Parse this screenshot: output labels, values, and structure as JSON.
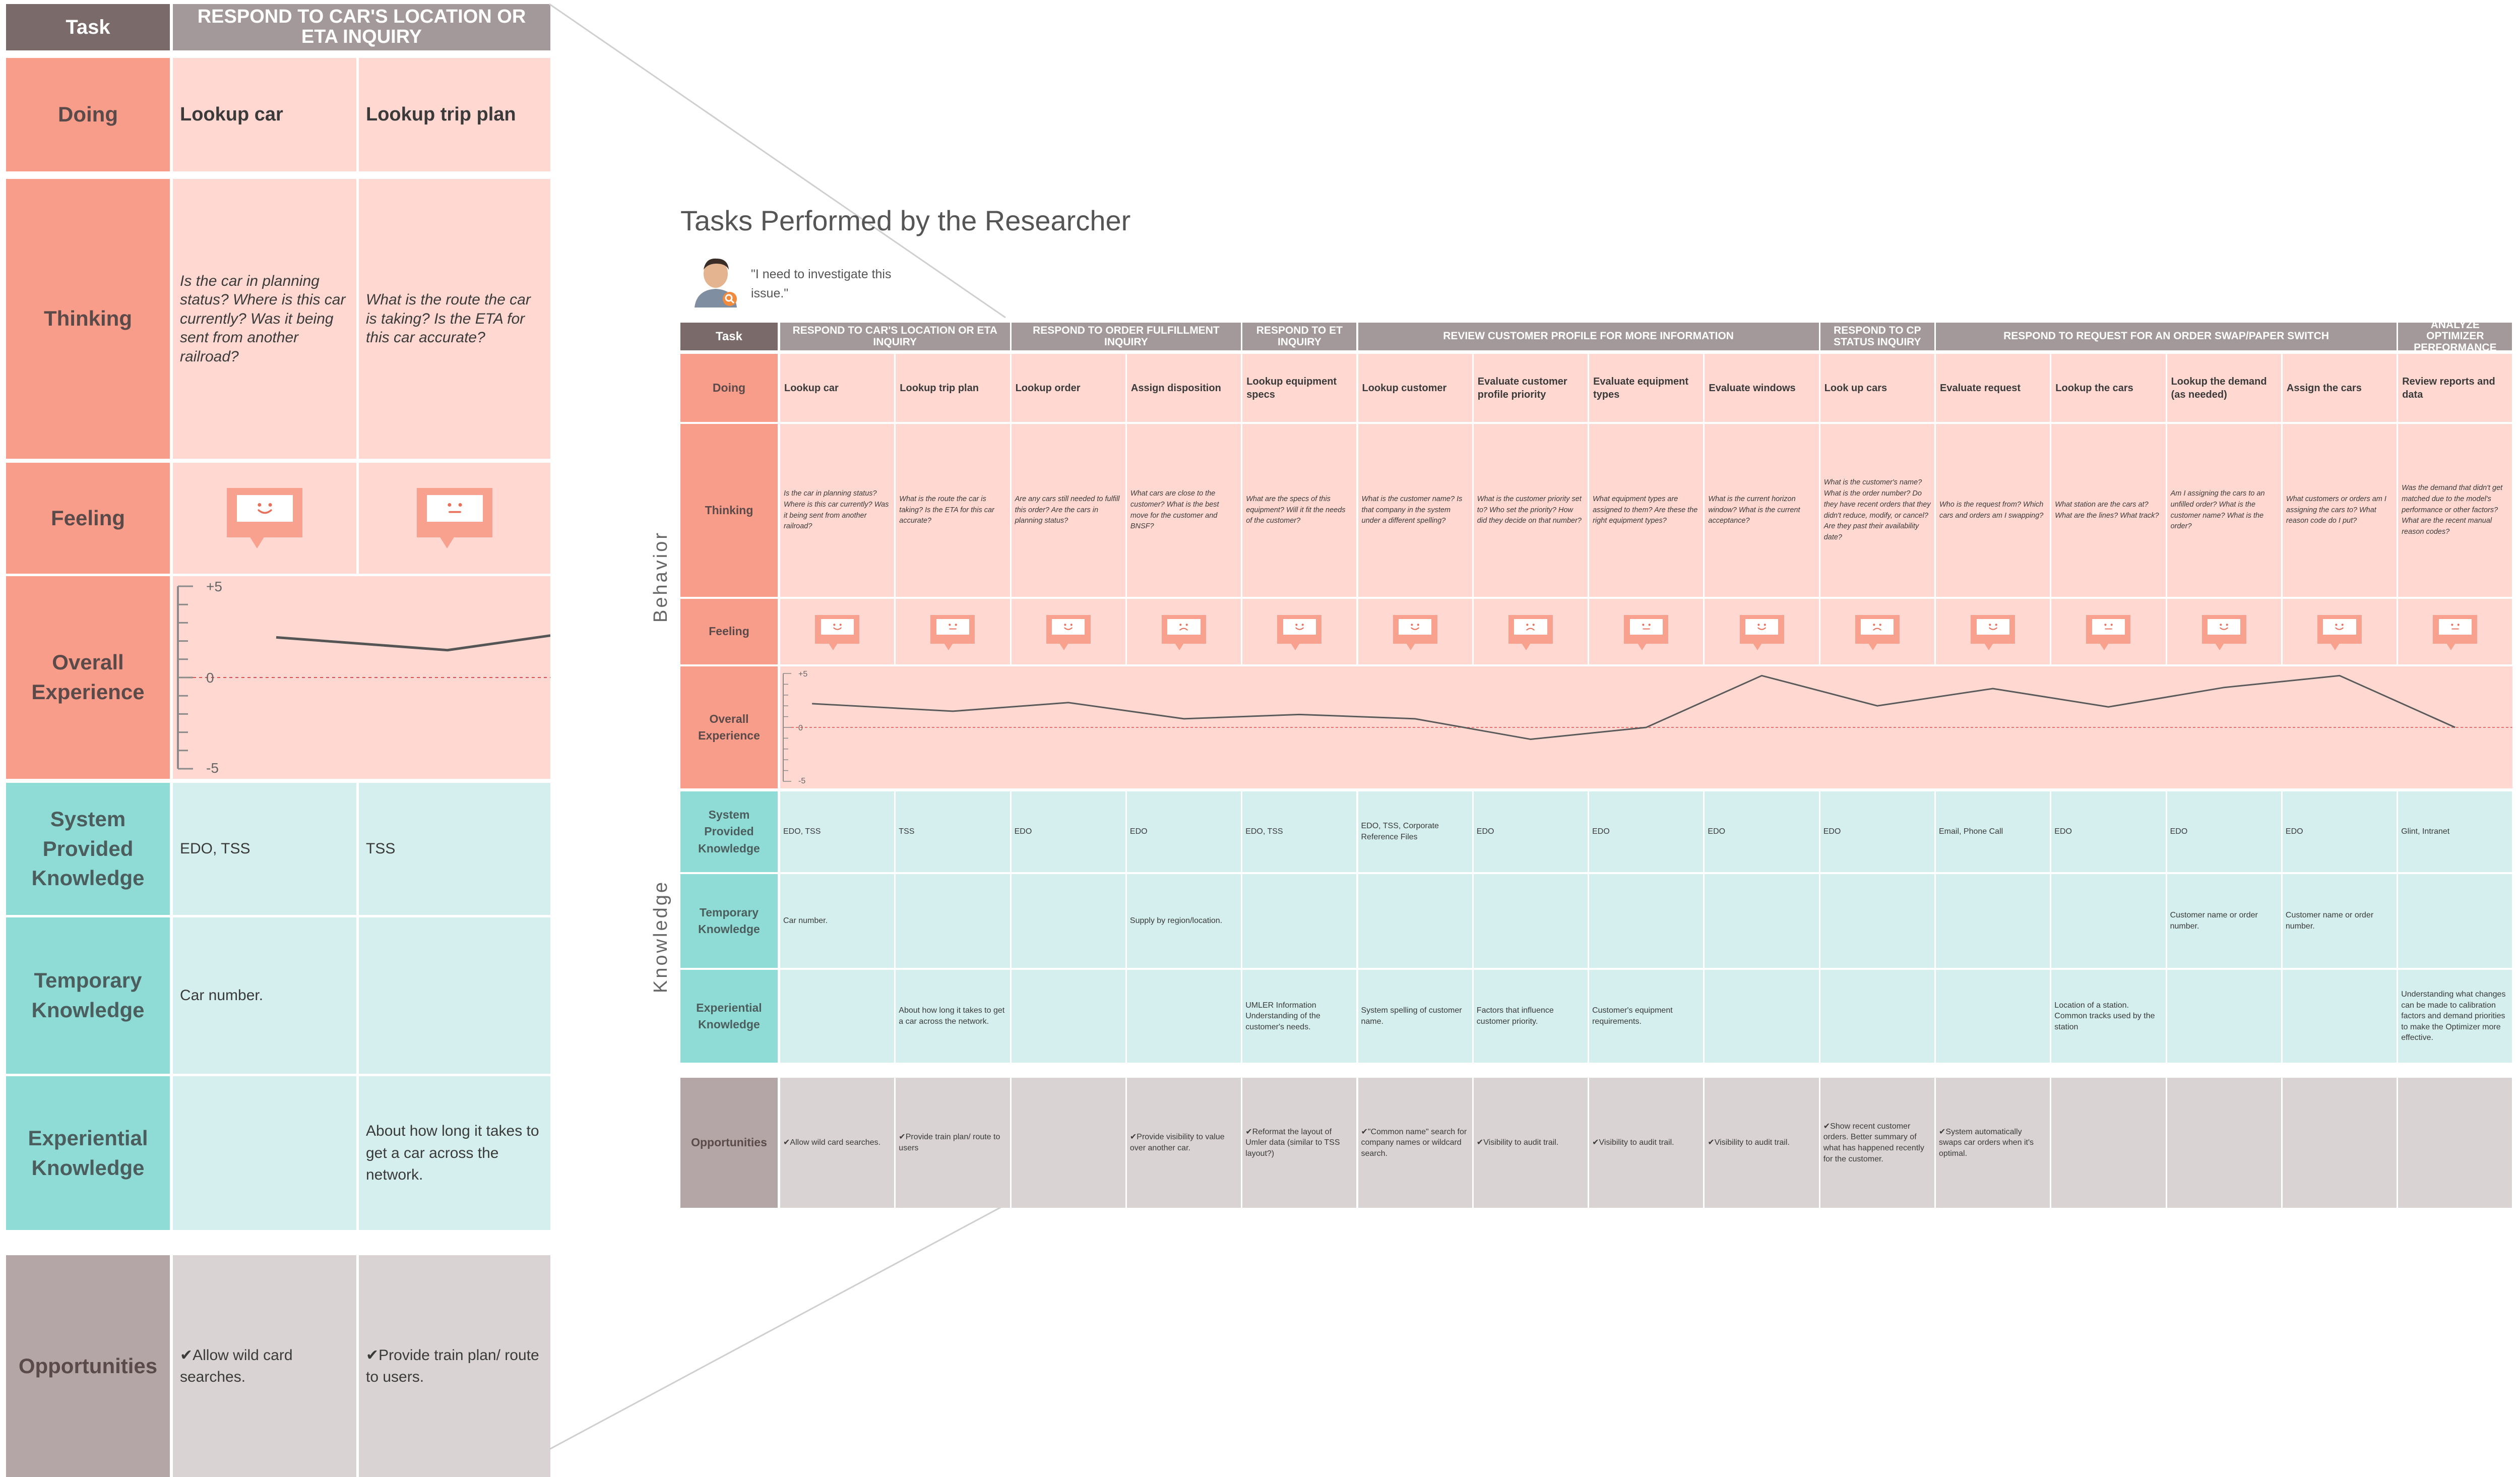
{
  "left_panel": {
    "task_label": "Task",
    "task_group": "RESPOND TO CAR'S LOCATION OR ETA INQUIRY",
    "rows": {
      "doing": "Doing",
      "thinking": "Thinking",
      "feeling": "Feeling",
      "overall": "Overall Experience",
      "system": "System Provided Knowledge",
      "temporary": "Temporary Knowledge",
      "experiential": "Experiential Knowledge",
      "opportunities": "Opportunities"
    },
    "axis": {
      "top": "+5",
      "zero": "0",
      "bottom": "-5"
    },
    "columns": [
      {
        "doing": "Lookup car",
        "thinking": "Is the car in planning status? Where is this car currently? Was it being sent from another railroad?",
        "feeling": "happy",
        "system": "EDO, TSS",
        "temporary": "Car number.",
        "experiential": "",
        "opportunity": "✔Allow wild card searches."
      },
      {
        "doing": "Lookup trip plan",
        "thinking": "What is the route the car is taking? Is the ETA for this car accurate?",
        "feeling": "neutral",
        "system": "TSS",
        "temporary": "",
        "experiential": "About how long it takes to get a car across the network.",
        "opportunity": "✔Provide train plan/ route to users."
      }
    ]
  },
  "main": {
    "title": "Tasks Performed by the Researcher",
    "quote": "\"I need to investigate this issue.\"",
    "side_labels": {
      "behavior": "Behavior",
      "knowledge": "Knowledge"
    },
    "row_labels": {
      "task": "Task",
      "doing": "Doing",
      "thinking": "Thinking",
      "feeling": "Feeling",
      "overall": "Overall Experience",
      "system": "System Provided Knowledge",
      "temporary": "Temporary Knowledge",
      "experiential": "Experiential Knowledge",
      "opportunities": "Opportunities"
    },
    "axis": {
      "top": "+5",
      "zero": "0",
      "bottom": "-5"
    },
    "groups": [
      {
        "label": "RESPOND TO CAR'S LOCATION OR ETA INQUIRY",
        "span": 2
      },
      {
        "label": "RESPOND TO ORDER FULFILLMENT INQUIRY",
        "span": 2
      },
      {
        "label": "RESPOND TO ET INQUIRY",
        "span": 1
      },
      {
        "label": "REVIEW CUSTOMER PROFILE FOR MORE INFORMATION",
        "span": 4
      },
      {
        "label": "RESPOND TO CP STATUS INQUIRY",
        "span": 1
      },
      {
        "label": "RESPOND TO REQUEST FOR AN ORDER SWAP/PAPER SWITCH",
        "span": 4
      },
      {
        "label": "ANALYZE OPTIMIZER PERFORMANCE",
        "span": 1
      }
    ],
    "columns": [
      {
        "doing": "Lookup car",
        "thinking": "Is the car in planning status? Where is this car currently? Was it being sent from another railroad?",
        "feeling": "happy",
        "experience": 2.2,
        "system": "EDO, TSS",
        "temporary": "Car number.",
        "experiential": "",
        "opportunity": "✔Allow wild card searches."
      },
      {
        "doing": "Lookup trip plan",
        "thinking": "What is the route the car is taking? Is the ETA for this car accurate?",
        "feeling": "neutral",
        "experience": 1.5,
        "system": "TSS",
        "temporary": "",
        "experiential": "About how long it takes to get a car across the network.",
        "opportunity": "✔Provide train plan/ route to users"
      },
      {
        "doing": "Lookup order",
        "thinking": "Are any cars still needed to fulfill this order? Are the cars in planning status?",
        "feeling": "happy",
        "experience": 2.3,
        "system": "EDO",
        "temporary": "",
        "experiential": "",
        "opportunity": ""
      },
      {
        "doing": "Assign disposition",
        "thinking": "What cars are close to the customer? What is the best move for the customer and BNSF?",
        "feeling": "sad",
        "experience": 0.8,
        "system": "EDO",
        "temporary": "Supply by region/location.",
        "experiential": "",
        "opportunity": "✔Provide visibility to value over another car."
      },
      {
        "doing": "Lookup equipment specs",
        "thinking": "What are the specs of this equipment? Will it fit the needs of the customer?",
        "feeling": "happy",
        "experience": 1.2,
        "system": "EDO, TSS",
        "temporary": "",
        "experiential": "UMLER Information Understanding of the customer's needs.",
        "opportunity": "✔Reformat the layout of Umler data (similar to TSS layout?)"
      },
      {
        "doing": "Lookup customer",
        "thinking": "What is the customer name? Is that company in the system under a different spelling?",
        "feeling": "happy",
        "experience": 0.8,
        "system": "EDO, TSS, Corporate Reference Files",
        "temporary": "",
        "experiential": "System spelling of customer name.",
        "opportunity": "✔\"Common name\" search for company names or wildcard search."
      },
      {
        "doing": "Evaluate customer profile priority",
        "thinking": "What is the customer priority set to? Who set the priority? How did they decide on that number?",
        "feeling": "sad",
        "experience": -1.1,
        "system": "EDO",
        "temporary": "",
        "experiential": "Factors that influence customer priority.",
        "opportunity": "✔Visibility to audit trail."
      },
      {
        "doing": "Evaluate equipment types",
        "thinking": "What equipment types are assigned to them? Are these the right equipment types?",
        "feeling": "neutral",
        "experience": 0.0,
        "system": "EDO",
        "temporary": "",
        "experiential": "Customer's equipment requirements.",
        "opportunity": "✔Visibility to audit trail."
      },
      {
        "doing": "Evaluate windows",
        "thinking": "What is the current horizon window? What is the current acceptance?",
        "feeling": "happy",
        "experience": 4.8,
        "system": "EDO",
        "temporary": "",
        "experiential": "",
        "opportunity": "✔Visibility to audit trail."
      },
      {
        "doing": "Look up cars",
        "thinking": "What is the customer's name? What is the order number? Do they have recent orders that they didn't reduce, modify, or cancel? Are they past their availability date?",
        "feeling": "sad",
        "experience": 2.0,
        "system": "EDO",
        "temporary": "",
        "experiential": "",
        "opportunity": "✔Show recent customer orders. Better summary of what has happened recently for the customer."
      },
      {
        "doing": "Evaluate request",
        "thinking": "Who is the request from? Which cars and orders am I swapping?",
        "feeling": "happy",
        "experience": 3.6,
        "system": "Email, Phone Call",
        "temporary": "",
        "experiential": "",
        "opportunity": "✔System automatically swaps car orders when it's optimal."
      },
      {
        "doing": "Lookup the cars",
        "thinking": "What station are the cars at? What are the lines? What track?",
        "feeling": "neutral",
        "experience": 1.9,
        "system": "EDO",
        "temporary": "",
        "experiential": "Location of a station. Common tracks used by the station",
        "opportunity": ""
      },
      {
        "doing": "Lookup the demand (as needed)",
        "thinking": "Am I assigning the cars to an unfilled order? What is the customer name? What is the order?",
        "feeling": "happy",
        "experience": 3.7,
        "system": "EDO",
        "temporary": "Customer name or order number.",
        "experiential": "",
        "opportunity": ""
      },
      {
        "doing": "Assign the cars",
        "thinking": "What customers or orders am I assigning the cars to? What reason code do I put?",
        "feeling": "happy",
        "experience": 4.8,
        "system": "EDO",
        "temporary": "Customer name or order number.",
        "experiential": "",
        "opportunity": ""
      },
      {
        "doing": "Review reports and data",
        "thinking": "Was the demand that didn't get matched due to the model's performance or other factors? What are the recent manual reason codes?",
        "feeling": "neutral",
        "experience": 0.0,
        "system": "Glint, Intranet",
        "temporary": "",
        "experiential": "Understanding what changes can be made to calibration factors and demand priorities to make the Optimizer more effective.",
        "opportunity": ""
      }
    ]
  },
  "colors": {
    "task_header": "#7a6a6a",
    "group_header": "#a3999a",
    "behavior_header": "#f79d8a",
    "behavior_cell": "#ffd9d1",
    "knowledge_header": "#8fdcd6",
    "knowledge_cell": "#d4efed",
    "opportunity_header": "#b4a6a6",
    "opportunity_cell": "#d9d3d3",
    "face": "#f7a18e",
    "experience_line": "#5a5a5a",
    "zero_line": "#e05050"
  }
}
